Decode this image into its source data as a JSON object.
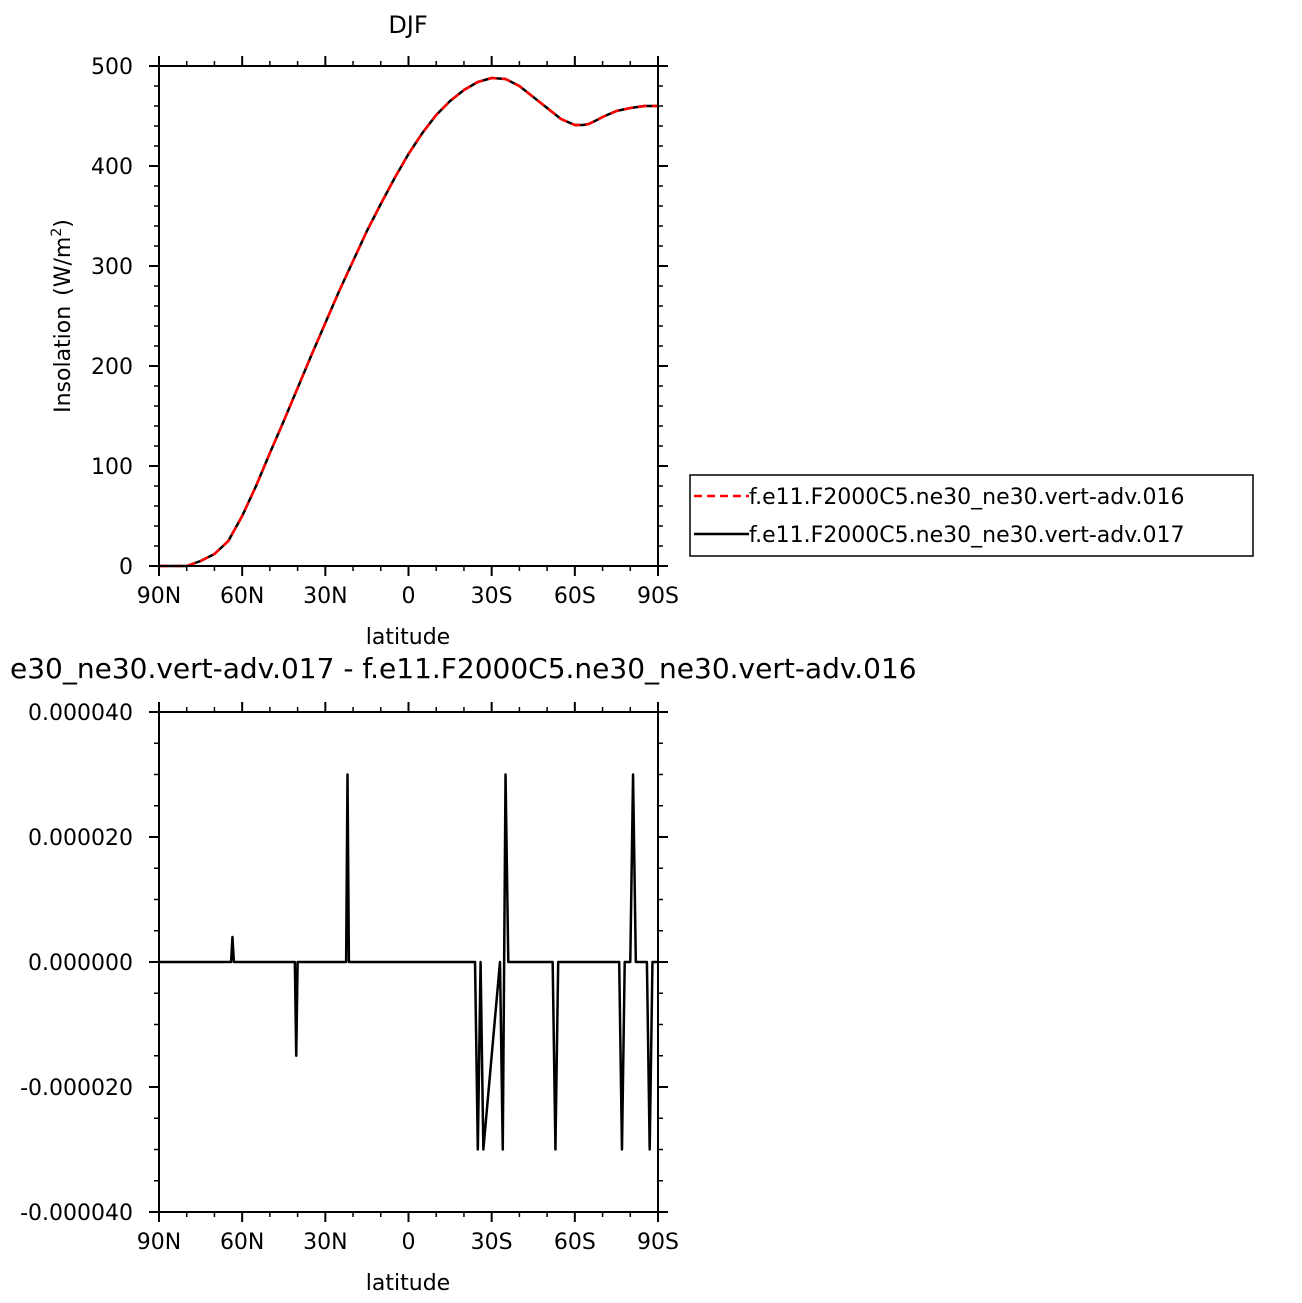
{
  "chart_data": [
    {
      "type": "line",
      "title": "DJF",
      "xlabel": "latitude",
      "ylabel": "Insolation",
      "ylabel_units": "(W/m",
      "ylabel_units_sup": "2",
      "ylabel_units_close": ")",
      "xlim": [
        -90,
        90
      ],
      "ylim": [
        0,
        500
      ],
      "x_ticks": [
        {
          "value": -90,
          "label": "90N"
        },
        {
          "value": -60,
          "label": "60N"
        },
        {
          "value": -30,
          "label": "30N"
        },
        {
          "value": 0,
          "label": "0"
        },
        {
          "value": 30,
          "label": "30S"
        },
        {
          "value": 60,
          "label": "60S"
        },
        {
          "value": 90,
          "label": "90S"
        }
      ],
      "y_ticks": [
        {
          "value": 0,
          "label": "0"
        },
        {
          "value": 100,
          "label": "100"
        },
        {
          "value": 200,
          "label": "200"
        },
        {
          "value": 300,
          "label": "300"
        },
        {
          "value": 400,
          "label": "400"
        },
        {
          "value": 500,
          "label": "500"
        }
      ],
      "legend_position": "right",
      "series": [
        {
          "name": "f.e11.F2000C5.ne30_ne30.vert-adv.016",
          "color": "#ff0000",
          "dash": "dashed",
          "x": [
            -90,
            -80,
            -75,
            -70,
            -65,
            -60,
            -55,
            -50,
            -45,
            -40,
            -35,
            -30,
            -25,
            -20,
            -15,
            -10,
            -5,
            0,
            5,
            10,
            15,
            20,
            25,
            30,
            35,
            40,
            45,
            50,
            55,
            60,
            63,
            65,
            68,
            70,
            75,
            80,
            85,
            90
          ],
          "y": [
            0,
            0,
            5,
            12,
            25,
            50,
            80,
            113,
            145,
            178,
            211,
            243,
            275,
            305,
            335,
            362,
            388,
            412,
            433,
            451,
            465,
            476,
            484,
            488,
            487,
            480,
            469,
            458,
            447,
            441,
            441,
            442,
            446,
            449,
            455,
            458,
            460,
            460
          ]
        },
        {
          "name": "f.e11.F2000C5.ne30_ne30.vert-adv.017",
          "color": "#000000",
          "dash": "solid",
          "x": [
            -90,
            -80,
            -75,
            -70,
            -65,
            -60,
            -55,
            -50,
            -45,
            -40,
            -35,
            -30,
            -25,
            -20,
            -15,
            -10,
            -5,
            0,
            5,
            10,
            15,
            20,
            25,
            30,
            35,
            40,
            45,
            50,
            55,
            60,
            63,
            65,
            68,
            70,
            75,
            80,
            85,
            90
          ],
          "y": [
            0,
            0,
            5,
            12,
            25,
            50,
            80,
            113,
            145,
            178,
            211,
            243,
            275,
            305,
            335,
            362,
            388,
            412,
            433,
            451,
            465,
            476,
            484,
            488,
            487,
            480,
            469,
            458,
            447,
            441,
            441,
            442,
            446,
            449,
            455,
            458,
            460,
            460
          ]
        }
      ]
    },
    {
      "type": "line",
      "title": "e30_ne30.vert-adv.017 - f.e11.F2000C5.ne30_ne30.vert-adv.016",
      "xlabel": "latitude",
      "ylabel": "",
      "xlim": [
        -90,
        90
      ],
      "ylim": [
        -4e-05,
        4e-05
      ],
      "x_ticks": [
        {
          "value": -90,
          "label": "90N"
        },
        {
          "value": -60,
          "label": "60N"
        },
        {
          "value": -30,
          "label": "30N"
        },
        {
          "value": 0,
          "label": "0"
        },
        {
          "value": 30,
          "label": "30S"
        },
        {
          "value": 60,
          "label": "60S"
        },
        {
          "value": 90,
          "label": "90S"
        }
      ],
      "y_ticks": [
        {
          "value": -4e-05,
          "label": "-0.000040"
        },
        {
          "value": -2e-05,
          "label": "-0.000020"
        },
        {
          "value": 0,
          "label": "0.000000"
        },
        {
          "value": 2e-05,
          "label": "0.000020"
        },
        {
          "value": 4e-05,
          "label": "0.000040"
        }
      ],
      "series": [
        {
          "color": "#000000",
          "dash": "solid",
          "x": [
            -90,
            -64,
            -63.5,
            -63,
            -41,
            -40.5,
            -40,
            -22.5,
            -22,
            -21.5,
            24,
            25,
            26,
            27,
            33,
            34,
            35,
            36,
            52,
            53,
            54,
            76,
            77,
            78,
            80,
            81,
            82,
            86,
            87,
            88,
            90
          ],
          "y": [
            0,
            0,
            4e-06,
            0,
            0,
            -1.5e-05,
            0,
            0,
            3e-05,
            0,
            0,
            -3e-05,
            0,
            -3e-05,
            0,
            -3e-05,
            3e-05,
            0,
            0,
            -3e-05,
            0,
            0,
            -3e-05,
            0,
            0,
            3e-05,
            0,
            0,
            -3e-05,
            0,
            0
          ]
        }
      ]
    }
  ]
}
